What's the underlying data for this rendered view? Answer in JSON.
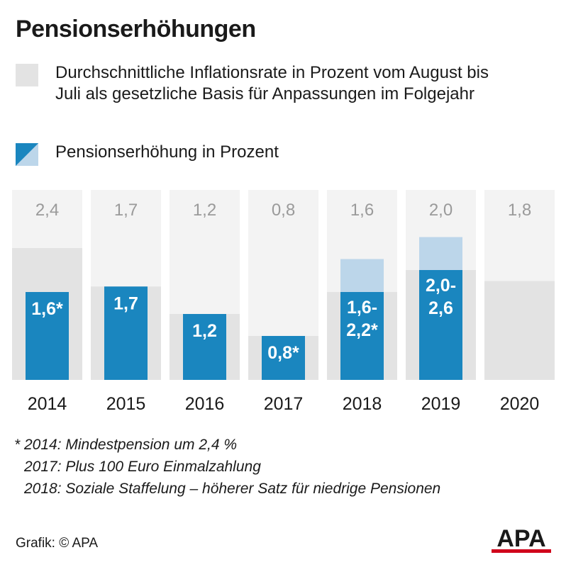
{
  "title": "Pensionserhöhungen",
  "legend": {
    "inflation": "Durchschnittliche Inflationsrate in Prozent vom August bis Juli als gesetzliche Basis für Anpassungen im Folgejahr",
    "pension": "Pensionserhöhung in Prozent"
  },
  "colors": {
    "inflation_bar": "#e3e3e3",
    "panel_background": "#f3f3f3",
    "pension_bar": "#1a86bf",
    "pension_range": "#bcd6ea",
    "label_inflation": "#9a9a9a",
    "label_pension": "#ffffff"
  },
  "chart_data": {
    "type": "bar",
    "categories": [
      "2014",
      "2015",
      "2016",
      "2017",
      "2018",
      "2019",
      "2020"
    ],
    "series": [
      {
        "key": "inflation",
        "values": [
          2.4,
          1.7,
          1.2,
          0.8,
          1.6,
          2.0,
          1.8
        ],
        "labels": [
          "2,4",
          "1,7",
          "1,2",
          "0,8",
          "1,6",
          "2,0",
          "1,8"
        ]
      },
      {
        "key": "pension",
        "values": [
          1.6,
          1.7,
          1.2,
          0.8,
          1.6,
          2.0,
          null
        ],
        "range_max": [
          null,
          null,
          null,
          null,
          2.2,
          2.6,
          null
        ],
        "labels": [
          [
            "1,6*"
          ],
          [
            "1,7"
          ],
          [
            "1,2"
          ],
          [
            "0,8*"
          ],
          [
            "1,6-",
            "2,2*"
          ],
          [
            "2,0-",
            "2,6"
          ],
          []
        ]
      }
    ],
    "ylim": [
      0,
      3.5
    ]
  },
  "footnotes": [
    "* 2014: Mindestpension um 2,4 %",
    "2017: Plus 100 Euro Einmalzahlung",
    "2018: Soziale Staffelung – höherer Satz für niedrige Pensionen"
  ],
  "source": "Grafik: © APA",
  "logo_text": "APA"
}
